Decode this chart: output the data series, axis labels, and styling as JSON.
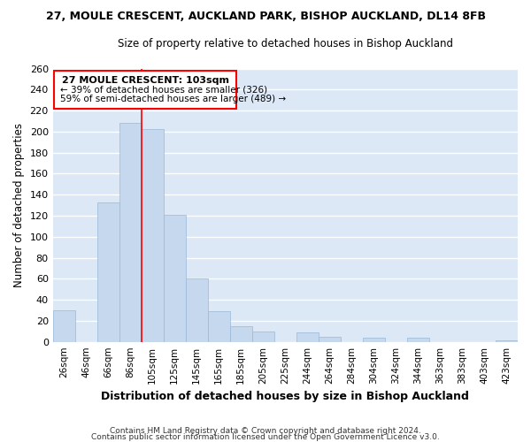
{
  "title": "27, MOULE CRESCENT, AUCKLAND PARK, BISHOP AUCKLAND, DL14 8FB",
  "subtitle": "Size of property relative to detached houses in Bishop Auckland",
  "xlabel": "Distribution of detached houses by size in Bishop Auckland",
  "ylabel": "Number of detached properties",
  "bar_color": "#c5d8ee",
  "bar_edge_color": "#9ab8d8",
  "grid_color": "#ffffff",
  "bg_color": "#dce8f5",
  "fig_bg_color": "#ffffff",
  "categories": [
    "26sqm",
    "46sqm",
    "66sqm",
    "86sqm",
    "105sqm",
    "125sqm",
    "145sqm",
    "165sqm",
    "185sqm",
    "205sqm",
    "225sqm",
    "244sqm",
    "264sqm",
    "284sqm",
    "304sqm",
    "324sqm",
    "344sqm",
    "363sqm",
    "383sqm",
    "403sqm",
    "423sqm"
  ],
  "values": [
    30,
    0,
    133,
    208,
    202,
    121,
    60,
    29,
    15,
    10,
    0,
    9,
    5,
    0,
    4,
    0,
    4,
    0,
    0,
    0,
    1
  ],
  "ylim": [
    0,
    260
  ],
  "yticks": [
    0,
    20,
    40,
    60,
    80,
    100,
    120,
    140,
    160,
    180,
    200,
    220,
    240,
    260
  ],
  "property_line_x": 3.5,
  "property_line_label": "27 MOULE CRESCENT: 103sqm",
  "annotation_line1": "← 39% of detached houses are smaller (326)",
  "annotation_line2": "59% of semi-detached houses are larger (489) →",
  "footer1": "Contains HM Land Registry data © Crown copyright and database right 2024.",
  "footer2": "Contains public sector information licensed under the Open Government Licence v3.0."
}
